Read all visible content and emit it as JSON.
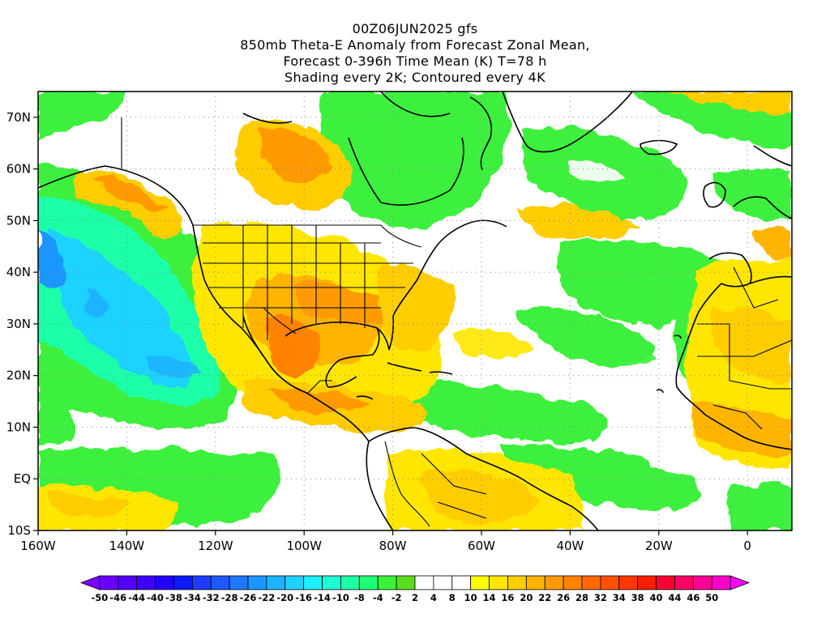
{
  "title": {
    "line1": "00Z06JUN2025 gfs",
    "line2": "850mb Theta-E Anomaly from Forecast Zonal Mean,",
    "line3": "Forecast 0-396h Time Mean (K) T=78 h",
    "line4": "Shading every 2K; Contoured every 4K"
  },
  "map": {
    "lon_range": [
      -160,
      10
    ],
    "lat_range": [
      -10,
      75
    ],
    "lon_ticks": [
      "160W",
      "140W",
      "120W",
      "100W",
      "80W",
      "60W",
      "40W",
      "20W",
      "0"
    ],
    "lat_ticks": [
      "10S",
      "EQ",
      "10N",
      "20N",
      "30N",
      "40N",
      "50N",
      "60N",
      "70N"
    ],
    "grid": "dotted",
    "colors": {
      "background_neutral": "#ffffff",
      "land_outline": "#000000"
    }
  },
  "colorbar": {
    "labels": [
      "-50",
      "-46",
      "-44",
      "-40",
      "-38",
      "-34",
      "-32",
      "-28",
      "-26",
      "-22",
      "-20",
      "-16",
      "-14",
      "-10",
      "-8",
      "-4",
      "-2",
      "2",
      "4",
      "8",
      "10",
      "14",
      "16",
      "20",
      "22",
      "26",
      "28",
      "32",
      "34",
      "38",
      "40",
      "44",
      "46",
      "50"
    ],
    "colors": [
      "#8000ff",
      "#6a00ff",
      "#5200ff",
      "#3c00ff",
      "#2400ff",
      "#0c1aff",
      "#1c3cff",
      "#1e5aff",
      "#1f78ff",
      "#1e96ff",
      "#1eb4ff",
      "#1ed2ff",
      "#1ef0ff",
      "#1effd6",
      "#1effa8",
      "#1eff78",
      "#3cf03c",
      "#5adc1e",
      "#ffffff",
      "#ffffff",
      "#ffffff",
      "#ffff00",
      "#ffe600",
      "#ffcd00",
      "#ffb400",
      "#ff9b00",
      "#ff8200",
      "#ff6900",
      "#ff5000",
      "#ff3700",
      "#ff1e00",
      "#ff0032",
      "#ff0064",
      "#ff0096",
      "#ff00c8",
      "#ff00ff"
    ]
  }
}
